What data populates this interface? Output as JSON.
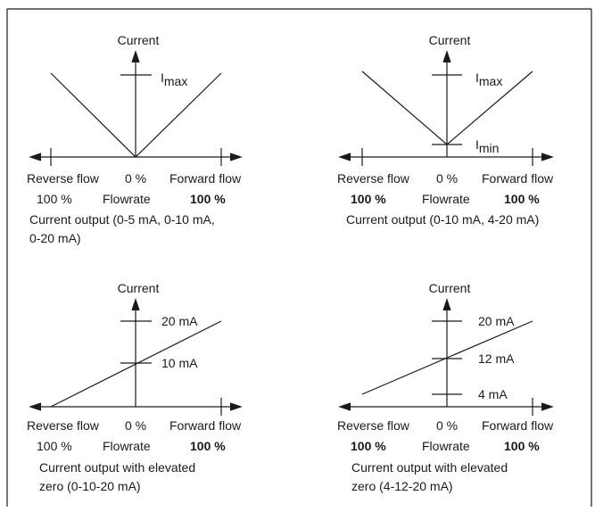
{
  "diagrams": [
    {
      "y_label": "Current",
      "x_left": "Reverse flow",
      "x_center": "0 %",
      "x_right": "Forward flow",
      "pct_left": "100 %",
      "pct_label": "Flowrate",
      "pct_right": "100 %",
      "caption_1": "Current output (0-5 mA, 0-10 mA,",
      "caption_2": "0-20 mA)",
      "ticks": [
        {
          "base": "I",
          "sub": "max"
        }
      ]
    },
    {
      "y_label": "Current",
      "x_left": "Reverse flow",
      "x_center": "0 %",
      "x_right": "Forward flow",
      "pct_left": "100 %",
      "pct_label": "Flowrate",
      "pct_right": "100 %",
      "caption_1": "Current output (0-10 mA, 4-20 mA)",
      "caption_2": "",
      "ticks": [
        {
          "base": "I",
          "sub": "max"
        },
        {
          "base": "I",
          "sub": "min"
        }
      ]
    },
    {
      "y_label": "Current",
      "x_left": "Reverse flow",
      "x_center": "0 %",
      "x_right": "Forward flow",
      "pct_left": "100 %",
      "pct_label": "Flowrate",
      "pct_right": "100 %",
      "caption_1": "Current output with elevated",
      "caption_2": "zero (0-10-20 mA)",
      "ticks": [
        {
          "text": "20 mA"
        },
        {
          "text": "10 mA"
        }
      ]
    },
    {
      "y_label": "Current",
      "x_left": "Reverse flow",
      "x_center": "0 %",
      "x_right": "Forward flow",
      "pct_left": "100 %",
      "pct_label": "Flowrate",
      "pct_right": "100 %",
      "caption_1": "Current output with elevated",
      "caption_2": "zero (4-12-20 mA)",
      "ticks": [
        {
          "text": "20 mA"
        },
        {
          "text": "12 mA"
        },
        {
          "text": "4 mA"
        }
      ]
    }
  ]
}
